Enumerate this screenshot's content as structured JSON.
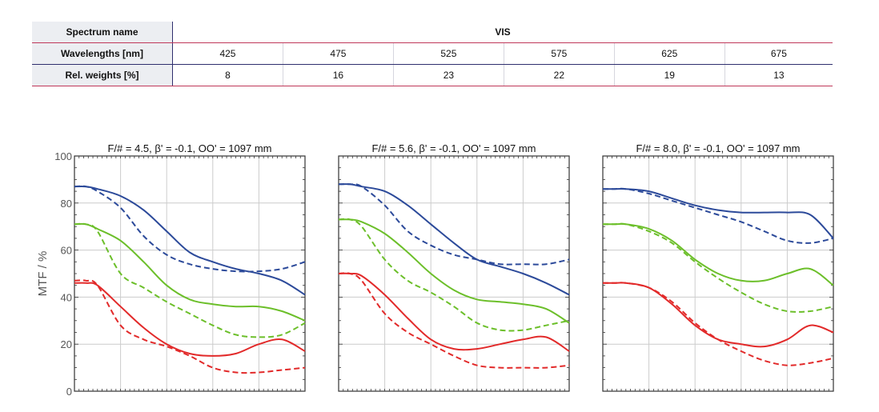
{
  "table": {
    "rows": [
      {
        "label": "Spectrum name",
        "values": [
          "VIS"
        ]
      },
      {
        "label": "Wavelengths [nm]",
        "values": [
          "425",
          "475",
          "525",
          "575",
          "625",
          "675"
        ]
      },
      {
        "label": "Rel. weights [%]",
        "values": [
          "8",
          "16",
          "23",
          "22",
          "19",
          "13"
        ]
      }
    ]
  },
  "colors": {
    "blue": "#2c4a9a",
    "green": "#6cbf2a",
    "red": "#e22a2a",
    "grid": "#cccccc",
    "frame": "#333333",
    "table_red_rule": "#c0385a",
    "table_navy_rule": "#2e2e6e"
  },
  "chart_data": [
    {
      "type": "line",
      "title": "F/# = 4.5, β' = -0.1, OO' = 1097 mm",
      "ylabel": "MTF / %",
      "ylim": [
        0,
        100
      ],
      "yticks": [
        "0",
        "20",
        "40",
        "60",
        "80",
        "100"
      ],
      "xlim": [
        0,
        1
      ],
      "grid": true,
      "series": [
        {
          "color": "blue",
          "dash": false,
          "x": [
            0,
            0.05,
            0.1,
            0.2,
            0.3,
            0.4,
            0.5,
            0.6,
            0.7,
            0.8,
            0.9,
            1
          ],
          "y": [
            87,
            87,
            86,
            83,
            77,
            68,
            59,
            55,
            52,
            50,
            47,
            41
          ]
        },
        {
          "color": "blue",
          "dash": true,
          "x": [
            0,
            0.05,
            0.1,
            0.2,
            0.3,
            0.4,
            0.5,
            0.6,
            0.7,
            0.8,
            0.9,
            1
          ],
          "y": [
            87,
            87,
            85,
            78,
            66,
            58,
            54,
            52,
            51,
            51,
            52,
            55
          ]
        },
        {
          "color": "green",
          "dash": false,
          "x": [
            0,
            0.05,
            0.1,
            0.2,
            0.3,
            0.4,
            0.5,
            0.6,
            0.7,
            0.8,
            0.9,
            1
          ],
          "y": [
            71,
            71,
            69,
            64,
            55,
            45,
            39,
            37,
            36,
            36,
            34,
            30
          ]
        },
        {
          "color": "green",
          "dash": true,
          "x": [
            0,
            0.05,
            0.1,
            0.2,
            0.3,
            0.4,
            0.5,
            0.6,
            0.7,
            0.8,
            0.9,
            1
          ],
          "y": [
            71,
            71,
            68,
            50,
            44,
            38,
            33,
            28,
            24,
            23,
            24,
            29
          ]
        },
        {
          "color": "red",
          "dash": false,
          "x": [
            0,
            0.05,
            0.1,
            0.2,
            0.3,
            0.4,
            0.5,
            0.6,
            0.7,
            0.8,
            0.9,
            1
          ],
          "y": [
            46,
            46,
            45,
            36,
            27,
            20,
            16,
            15,
            16,
            20,
            22,
            17
          ]
        },
        {
          "color": "red",
          "dash": true,
          "x": [
            0,
            0.05,
            0.1,
            0.2,
            0.3,
            0.4,
            0.5,
            0.6,
            0.7,
            0.8,
            0.9,
            1
          ],
          "y": [
            47,
            47,
            45,
            28,
            22,
            19,
            15,
            10,
            8,
            8,
            9,
            10
          ]
        }
      ]
    },
    {
      "type": "line",
      "title": "F/# = 5.6, β' = -0.1, OO' = 1097 mm",
      "ylabel": "",
      "ylim": [
        0,
        100
      ],
      "xlim": [
        0,
        1
      ],
      "grid": true,
      "series": [
        {
          "color": "blue",
          "dash": false,
          "x": [
            0,
            0.05,
            0.1,
            0.2,
            0.3,
            0.4,
            0.5,
            0.6,
            0.7,
            0.8,
            0.9,
            1
          ],
          "y": [
            88,
            88,
            87,
            85,
            79,
            71,
            63,
            56,
            53,
            50,
            46,
            41
          ]
        },
        {
          "color": "blue",
          "dash": true,
          "x": [
            0,
            0.05,
            0.1,
            0.2,
            0.3,
            0.4,
            0.5,
            0.6,
            0.7,
            0.8,
            0.9,
            1
          ],
          "y": [
            88,
            88,
            87,
            79,
            68,
            62,
            58,
            56,
            54,
            54,
            54,
            56
          ]
        },
        {
          "color": "green",
          "dash": false,
          "x": [
            0,
            0.05,
            0.1,
            0.2,
            0.3,
            0.4,
            0.5,
            0.6,
            0.7,
            0.8,
            0.9,
            1
          ],
          "y": [
            73,
            73,
            72,
            67,
            59,
            50,
            43,
            39,
            38,
            37,
            35,
            29
          ]
        },
        {
          "color": "green",
          "dash": true,
          "x": [
            0,
            0.05,
            0.1,
            0.2,
            0.3,
            0.4,
            0.5,
            0.6,
            0.7,
            0.8,
            0.9,
            1
          ],
          "y": [
            73,
            73,
            70,
            56,
            47,
            42,
            36,
            29,
            26,
            26,
            28,
            30
          ]
        },
        {
          "color": "red",
          "dash": false,
          "x": [
            0,
            0.05,
            0.1,
            0.2,
            0.3,
            0.4,
            0.5,
            0.6,
            0.7,
            0.8,
            0.9,
            1
          ],
          "y": [
            50,
            50,
            49,
            41,
            31,
            22,
            18,
            18,
            20,
            22,
            23,
            17
          ]
        },
        {
          "color": "red",
          "dash": true,
          "x": [
            0,
            0.05,
            0.1,
            0.2,
            0.3,
            0.4,
            0.5,
            0.6,
            0.7,
            0.8,
            0.9,
            1
          ],
          "y": [
            50,
            50,
            47,
            33,
            25,
            20,
            15,
            11,
            10,
            10,
            10,
            11
          ]
        }
      ]
    },
    {
      "type": "line",
      "title": "F/# = 8.0, β' = -0.1, OO' = 1097 mm",
      "ylabel": "",
      "ylim": [
        0,
        100
      ],
      "xlim": [
        0,
        1
      ],
      "grid": true,
      "series": [
        {
          "color": "blue",
          "dash": false,
          "x": [
            0,
            0.05,
            0.1,
            0.2,
            0.3,
            0.4,
            0.5,
            0.6,
            0.7,
            0.8,
            0.9,
            1
          ],
          "y": [
            86,
            86,
            86,
            85,
            82,
            79,
            77,
            76,
            76,
            76,
            75,
            65
          ]
        },
        {
          "color": "blue",
          "dash": true,
          "x": [
            0,
            0.05,
            0.1,
            0.2,
            0.3,
            0.4,
            0.5,
            0.6,
            0.7,
            0.8,
            0.9,
            1
          ],
          "y": [
            86,
            86,
            86,
            84,
            81,
            78,
            75,
            72,
            68,
            64,
            63,
            65
          ]
        },
        {
          "color": "green",
          "dash": false,
          "x": [
            0,
            0.05,
            0.1,
            0.2,
            0.3,
            0.4,
            0.5,
            0.6,
            0.7,
            0.8,
            0.9,
            1
          ],
          "y": [
            71,
            71,
            71,
            69,
            64,
            56,
            50,
            47,
            47,
            50,
            52,
            45
          ]
        },
        {
          "color": "green",
          "dash": true,
          "x": [
            0,
            0.05,
            0.1,
            0.2,
            0.3,
            0.4,
            0.5,
            0.6,
            0.7,
            0.8,
            0.9,
            1
          ],
          "y": [
            71,
            71,
            71,
            68,
            63,
            55,
            48,
            42,
            37,
            34,
            34,
            36
          ]
        },
        {
          "color": "red",
          "dash": false,
          "x": [
            0,
            0.05,
            0.1,
            0.2,
            0.3,
            0.4,
            0.5,
            0.6,
            0.7,
            0.8,
            0.9,
            1
          ],
          "y": [
            46,
            46,
            46,
            44,
            37,
            28,
            22,
            20,
            19,
            22,
            28,
            25
          ]
        },
        {
          "color": "red",
          "dash": true,
          "x": [
            0,
            0.05,
            0.1,
            0.2,
            0.3,
            0.4,
            0.5,
            0.6,
            0.7,
            0.8,
            0.9,
            1
          ],
          "y": [
            46,
            46,
            46,
            44,
            38,
            29,
            22,
            17,
            13,
            11,
            12,
            14
          ]
        }
      ]
    }
  ]
}
